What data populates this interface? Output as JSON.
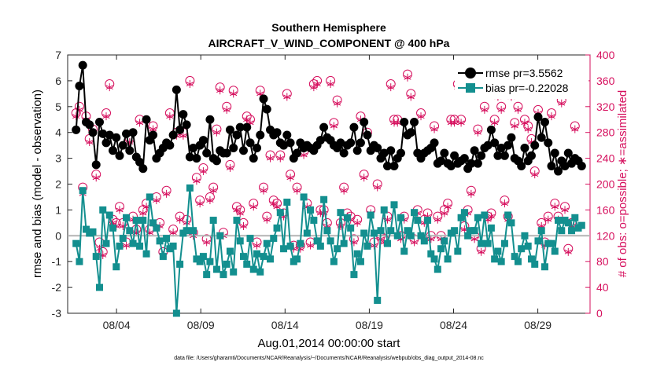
{
  "chart_data": {
    "type": "line",
    "title": "Southern Hemisphere",
    "subtitle": "AIRCRAFT_V_WIND_COMPONENT @ 400 hPa",
    "xlabel": "Aug.01,2014 00:00:00 start",
    "ylabel_left": "rmse and bias (model - observation)",
    "ylabel_right": "# of obs: o=possible; ∗=assimilated",
    "footnote": "data file: /Users/gharamti/Documents/NCAR/Reanalysis/~/Documents/NCAR/Reanalysis/webpub/obs_diag_output_2014-08.nc",
    "xlim": [
      0.6,
      31.6
    ],
    "ylim_left": [
      -3,
      7
    ],
    "ylim_right": [
      0,
      400
    ],
    "x_ticks": [
      3.5,
      8.5,
      13.5,
      18.5,
      23.5,
      28.5
    ],
    "x_tick_labels": [
      "08/04",
      "08/09",
      "08/14",
      "08/19",
      "08/24",
      "08/29"
    ],
    "y_left_ticks": [
      -3,
      -2,
      -1,
      0,
      1,
      2,
      3,
      4,
      5,
      6,
      7
    ],
    "y_right_ticks": [
      0,
      40,
      80,
      120,
      160,
      200,
      240,
      280,
      320,
      360,
      400
    ],
    "grid": false,
    "legend_position": "top-right",
    "colors": {
      "rmse": "#000000",
      "bias": "#138f8f",
      "obs": "#d6105e",
      "zero_line": "#b4b4b4",
      "axis": "#262626"
    },
    "series": [
      {
        "name": "rmse pr=3.5562",
        "axis": "left",
        "marker": "circle",
        "values": [
          4.1,
          5.8,
          6.6,
          4.4,
          4.3,
          4.0,
          2.75,
          4.4,
          3.95,
          3.6,
          3.9,
          3.3,
          3.8,
          3.1,
          3.5,
          3.95,
          3.3,
          4.0,
          3.05,
          2.85,
          2.6,
          4.5,
          3.7,
          3.9,
          3.0,
          3.2,
          3.4,
          3.6,
          3.5,
          3.9,
          5.65,
          4.1,
          4.7,
          4.3,
          3.05,
          3.4,
          3.0,
          3.5,
          3.7,
          3.2,
          4.5,
          3.0,
          2.9,
          3.3,
          3.2,
          3.2,
          4.1,
          3.4,
          3.9,
          4.2,
          3.3,
          4.2,
          3.6,
          3.0,
          3.4,
          3.9,
          5.3,
          4.9,
          4.1,
          3.9,
          4.0,
          3.6,
          3.5,
          3.9,
          3.6,
          3.0,
          3.2,
          3.6,
          3.4,
          3.5,
          3.4,
          3.3,
          3.5,
          3.7,
          4.2,
          3.8,
          3.7,
          3.5,
          3.4,
          3.6,
          3.2,
          3.5,
          3.6,
          4.2,
          3.3,
          3.6,
          4.4,
          3.9,
          3.3,
          3.5,
          3.4,
          3.0,
          3.2,
          2.7,
          3.3,
          2.7,
          3.0,
          3.2,
          4.4,
          3.9,
          4.0,
          4.4,
          3.2,
          3.0,
          3.2,
          3.3,
          3.4,
          3.6,
          2.8,
          2.9,
          3.2,
          2.8,
          2.7,
          3.1,
          2.8,
          2.9,
          3.0,
          2.6,
          2.8,
          3.3,
          2.8,
          3.1,
          3.4,
          3.5,
          4.1,
          3.6,
          3.1,
          3.4,
          3.1,
          3.5,
          3.8,
          3.0,
          2.9,
          2.7,
          3.4,
          2.9,
          3.1,
          3.5,
          4.6,
          3.8,
          4.4,
          3.6,
          2.7,
          3.2,
          2.5,
          2.9,
          2.7,
          3.2,
          2.8,
          3.0,
          2.9,
          2.7
        ]
      },
      {
        "name": "bias pr=-0.22028",
        "axis": "left",
        "marker": "square",
        "values": [
          -0.3,
          -1.0,
          1.75,
          0.25,
          0.1,
          0.15,
          -0.8,
          -2.0,
          1.0,
          -0.3,
          0.8,
          0.3,
          -1.2,
          -0.4,
          -0.1,
          0.7,
          0.2,
          -0.3,
          0.6,
          -0.4,
          0.6,
          -0.7,
          1.5,
          0.5,
          0.3,
          -0.2,
          -0.8,
          -0.1,
          -0.5,
          -0.4,
          -3.0,
          -1.1,
          0.1,
          0.2,
          1.85,
          0.2,
          -0.9,
          -1.0,
          -0.8,
          -1.5,
          -1.0,
          0.6,
          -1.3,
          0.0,
          -1.5,
          -1.1,
          -0.6,
          -1.4,
          0.6,
          -0.2,
          -0.8,
          -1.1,
          -0.1,
          -1.3,
          -0.7,
          -1.4,
          -0.8,
          -0.3,
          -0.9,
          -0.1,
          0.3,
          0.9,
          -0.5,
          1.3,
          -0.4,
          -1.0,
          -0.9,
          -0.3,
          1.5,
          0.1,
          1.0,
          0.6,
          -0.2,
          -0.4,
          1.4,
          0.2,
          -0.2,
          -1.0,
          -0.5,
          0.9,
          -0.3,
          0.7,
          0.3,
          -1.5,
          -0.7,
          -1.0,
          0.1,
          -0.4,
          0.8,
          0.1,
          -2.5,
          0.2,
          1.0,
          -0.3,
          0.2,
          1.2,
          0.0,
          0.7,
          -0.6,
          0.2,
          0.0,
          0.9,
          0.6,
          0.0,
          -0.2,
          0.6,
          -0.7,
          -0.9,
          -1.3,
          -0.5,
          -0.2,
          -0.9,
          0.1,
          0.2,
          -0.6,
          0.7,
          0.9,
          0.0,
          0.2,
          0.2,
          0.7,
          -0.3,
          0.8,
          -0.3,
          0.3,
          -0.9,
          -0.6,
          -1.0,
          -0.3,
          0.8,
          0.5,
          -0.8,
          -1.0,
          -0.5,
          0.0,
          -0.4,
          -0.9,
          -1.1,
          -0.2,
          0.2,
          -1.2,
          -0.3,
          -0.3,
          -0.6,
          0.6,
          0.2,
          0.6,
          0.5,
          0.2,
          0.7,
          0.3,
          0.4
        ]
      },
      {
        "name": "possible",
        "axis": "right",
        "marker": "open-circle",
        "values": [
          310,
          320,
          195,
          305,
          270,
          285,
          215,
          110,
          95,
          310,
          355,
          145,
          140,
          165,
          140,
          110,
          270,
          150,
          130,
          300,
          160,
          170,
          130,
          290,
          180,
          140,
          95,
          190,
          310,
          130,
          280,
          150,
          280,
          145,
          360,
          125,
          210,
          175,
          225,
          115,
          180,
          195,
          285,
          350,
          125,
          320,
          230,
          345,
          165,
          160,
          140,
          305,
          300,
          170,
          110,
          345,
          195,
          150,
          245,
          175,
          170,
          245,
          155,
          340,
          215,
          105,
          195,
          105,
          250,
          170,
          110,
          355,
          360,
          160,
          160,
          140,
          360,
          295,
          330,
          140,
          195,
          155,
          150,
          115,
          145,
          305,
          215,
          280,
          160,
          110,
          200,
          120,
          115,
          150,
          355,
          300,
          300,
          120,
          150,
          370,
          340,
          115,
          160,
          310,
          145,
          155,
          120,
          290,
          150,
          120,
          160,
          170,
          300,
          300,
          355,
          300,
          135,
          160,
          190,
          120,
          285,
          100,
          320,
          150,
          155,
          300,
          340,
          320,
          175,
          150,
          340,
          295,
          320,
          345,
          300,
          290,
          270,
          220,
          315,
          140,
          110,
          150,
          310,
          170,
          150,
          330,
          165,
          100,
          140,
          290
        ]
      },
      {
        "name": "assimilated",
        "axis": "right",
        "marker": "asterisk",
        "values": [
          305,
          315,
          185,
          300,
          265,
          280,
          210,
          100,
          90,
          305,
          350,
          140,
          135,
          160,
          135,
          105,
          265,
          145,
          125,
          295,
          155,
          165,
          125,
          285,
          175,
          135,
          90,
          185,
          305,
          125,
          275,
          145,
          275,
          140,
          355,
          120,
          205,
          170,
          220,
          110,
          175,
          190,
          280,
          345,
          120,
          315,
          225,
          340,
          160,
          155,
          135,
          300,
          295,
          165,
          105,
          340,
          190,
          145,
          240,
          170,
          165,
          240,
          150,
          335,
          210,
          100,
          190,
          100,
          245,
          165,
          105,
          350,
          355,
          155,
          155,
          135,
          355,
          290,
          325,
          135,
          190,
          150,
          145,
          110,
          140,
          300,
          210,
          275,
          155,
          105,
          195,
          115,
          110,
          145,
          350,
          295,
          295,
          115,
          145,
          365,
          335,
          110,
          155,
          305,
          140,
          150,
          115,
          285,
          145,
          115,
          155,
          165,
          295,
          295,
          350,
          295,
          130,
          155,
          185,
          115,
          280,
          95,
          315,
          145,
          150,
          295,
          335,
          315,
          170,
          145,
          335,
          290,
          315,
          340,
          295,
          285,
          265,
          215,
          310,
          135,
          105,
          145,
          305,
          165,
          145,
          325,
          160,
          95,
          135,
          285
        ]
      }
    ]
  }
}
